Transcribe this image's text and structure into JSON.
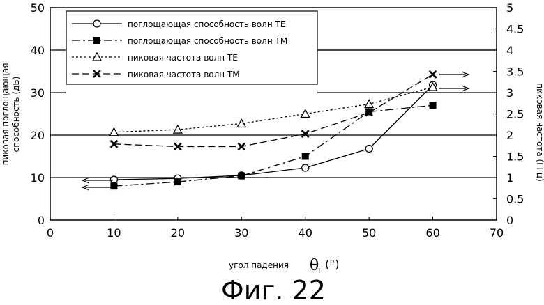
{
  "chart_data": {
    "type": "line",
    "x": [
      10,
      20,
      30,
      40,
      50,
      60
    ],
    "xlim": [
      0,
      70
    ],
    "xticks": [
      0,
      10,
      20,
      30,
      40,
      50,
      60,
      70
    ],
    "ylim": [
      0,
      50
    ],
    "yticks": [
      0,
      10,
      20,
      30,
      40,
      50
    ],
    "y2lim": [
      0,
      5
    ],
    "y2ticks": [
      "0",
      "0.5",
      "1",
      "1.5",
      "2",
      "2.5",
      "3",
      "3.5",
      "4",
      "4.5",
      "5"
    ],
    "xlabel": "угол падения",
    "xlabel_symbol": "θ",
    "xlabel_sub": "i",
    "xlabel_unit": "(°)",
    "ylabel_line1": "пиковая поглощающая",
    "ylabel_line2": "способность (дБ)",
    "y2label": "пиковая частота (ГГц)",
    "grid": "horizontal",
    "legend_position": "top-center",
    "series": [
      {
        "name": "поглощающая способность волн TE",
        "axis": "left",
        "marker": "open-circle",
        "line": "solid",
        "values": [
          9.5,
          9.8,
          10.5,
          12.3,
          16.8,
          31.8
        ]
      },
      {
        "name": "поглощающая способность волн TM",
        "axis": "left",
        "marker": "filled-square",
        "line": "dash-dot",
        "values": [
          8.0,
          9.0,
          10.4,
          15.0,
          25.5,
          27.0
        ]
      },
      {
        "name": "пиковая частота волн TE",
        "axis": "right",
        "marker": "open-triangle",
        "line": "dotted",
        "values": [
          2.07,
          2.13,
          2.27,
          2.5,
          2.73,
          3.13
        ]
      },
      {
        "name": "пиковая частота волн TM",
        "axis": "right",
        "marker": "x",
        "line": "dashed",
        "values": [
          1.79,
          1.73,
          1.73,
          2.03,
          2.53,
          3.43
        ]
      }
    ],
    "caption": "Фиг. 22"
  }
}
